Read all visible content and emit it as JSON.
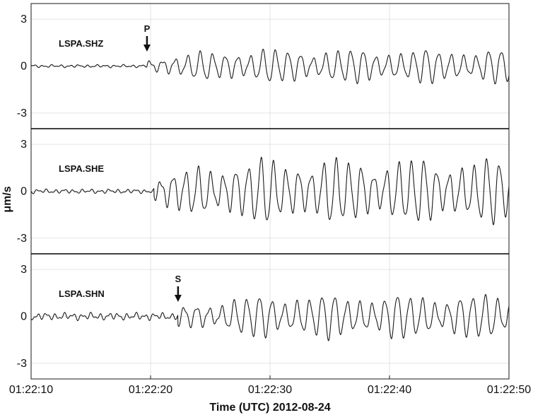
{
  "chart_data": {
    "type": "line",
    "xlabel": "Time (UTC) 2012-08-24",
    "ylabel": "μm/s",
    "x_range_seconds": [
      0,
      40
    ],
    "x_ticks": [
      {
        "t": 0,
        "label": "01:22:10"
      },
      {
        "t": 10,
        "label": "01:22:20"
      },
      {
        "t": 20,
        "label": "01:22:30"
      },
      {
        "t": 30,
        "label": "01:22:40"
      },
      {
        "t": 40,
        "label": "01:22:50"
      }
    ],
    "ylim": [
      -4,
      4
    ],
    "y_ticks": [
      -3,
      0,
      3
    ],
    "grid": true,
    "panels": [
      {
        "station": "LSPA.SHZ",
        "phase": {
          "label": "P",
          "t": 9.7
        },
        "onset_t": 9.7,
        "noise_amp": 0.1,
        "peak_amp": 1.0,
        "period_s": 1.05
      },
      {
        "station": "LSPA.SHE",
        "phase": null,
        "onset_t": 10.3,
        "noise_amp": 0.15,
        "peak_amp": 1.9,
        "period_s": 1.05
      },
      {
        "station": "LSPA.SHN",
        "phase": {
          "label": "S",
          "t": 12.3
        },
        "onset_t": 12.3,
        "noise_amp": 0.25,
        "peak_amp": 1.3,
        "period_s": 1.05
      }
    ]
  }
}
